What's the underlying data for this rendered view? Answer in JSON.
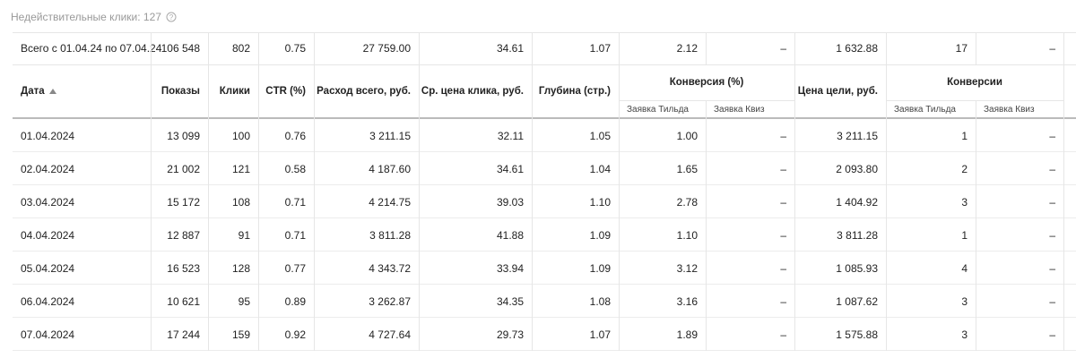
{
  "note": {
    "label": "Недействительные клики: 127"
  },
  "table": {
    "summary": [
      "Всего с 01.04.24 по 07.04.24",
      "106 548",
      "802",
      "0.75",
      "27 759.00",
      "34.61",
      "1.07",
      "2.12",
      "–",
      "1 632.88",
      "17",
      "–"
    ],
    "headers": [
      "Дата",
      "Показы",
      "Клики",
      "CTR (%)",
      "Расход всего, руб.",
      "Ср. цена клика, руб.",
      "Глубина (стр.)",
      "Конверсия (%)",
      "Цена цели, руб.",
      "Конверсии"
    ],
    "subheaders": [
      "Заявка Тильда",
      "Заявка Квиз",
      "Заявка Тильда",
      "Заявка Квиз"
    ],
    "rows": [
      [
        "01.04.2024",
        "13 099",
        "100",
        "0.76",
        "3 211.15",
        "32.11",
        "1.05",
        "1.00",
        "–",
        "3 211.15",
        "1",
        "–"
      ],
      [
        "02.04.2024",
        "21 002",
        "121",
        "0.58",
        "4 187.60",
        "34.61",
        "1.04",
        "1.65",
        "–",
        "2 093.80",
        "2",
        "–"
      ],
      [
        "03.04.2024",
        "15 172",
        "108",
        "0.71",
        "4 214.75",
        "39.03",
        "1.10",
        "2.78",
        "–",
        "1 404.92",
        "3",
        "–"
      ],
      [
        "04.04.2024",
        "12 887",
        "91",
        "0.71",
        "3 811.28",
        "41.88",
        "1.09",
        "1.10",
        "–",
        "3 811.28",
        "1",
        "–"
      ],
      [
        "05.04.2024",
        "16 523",
        "128",
        "0.77",
        "4 343.72",
        "33.94",
        "1.09",
        "3.12",
        "–",
        "1 085.93",
        "4",
        "–"
      ],
      [
        "06.04.2024",
        "10 621",
        "95",
        "0.89",
        "3 262.87",
        "34.35",
        "1.08",
        "3.16",
        "–",
        "1 087.62",
        "3",
        "–"
      ],
      [
        "07.04.2024",
        "17 244",
        "159",
        "0.92",
        "4 727.64",
        "29.73",
        "1.07",
        "1.89",
        "–",
        "1 575.88",
        "3",
        "–"
      ]
    ]
  }
}
